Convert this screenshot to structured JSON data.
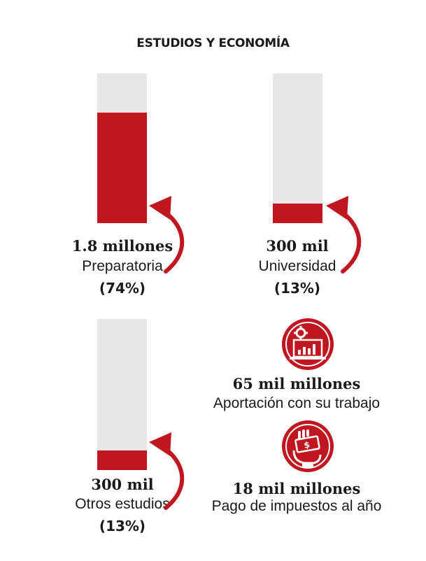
{
  "title": "ESTUDIOS Y ECONOMÍA",
  "colors": {
    "accent": "#c0161f",
    "track": "#e7e7e7",
    "text": "#1a1a1a"
  },
  "chart_data": {
    "type": "bar",
    "categories": [
      "Preparatoria",
      "Universidad",
      "Otros estudios"
    ],
    "values": [
      74,
      13,
      13
    ],
    "value_labels": [
      "1.8 millones",
      "300 mil",
      "300 mil"
    ],
    "percent_labels": [
      "(74%)",
      "(13%)",
      "(13%)"
    ],
    "ylim": [
      0,
      100
    ]
  },
  "stats": [
    {
      "icon": "gear-laptop-chart-icon",
      "value": "65 mil millones",
      "label": "Aportación con su trabajo"
    },
    {
      "icon": "hand-money-icon",
      "value": "18 mil millones",
      "label": "Pago de impuestos al año"
    }
  ]
}
